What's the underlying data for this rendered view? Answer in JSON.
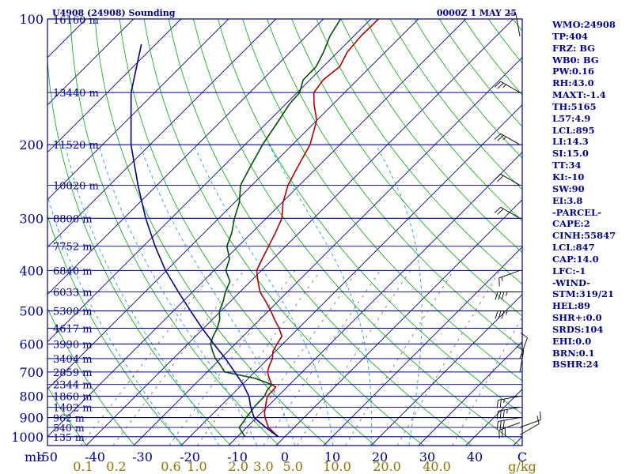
{
  "title_left": "U4908 (24908) Sounding",
  "title_right": "0000Z  1 MAY 25",
  "chart_data": {
    "type": "line",
    "title": "U4908 (24908) Sounding",
    "xlabel": "C",
    "x2label": "g/kg",
    "y_unit_label": "mb",
    "xlim": [
      -50,
      50
    ],
    "ylim": [
      1050,
      100
    ],
    "pressure_ticks": [
      100,
      200,
      300,
      400,
      500,
      600,
      700,
      800,
      900,
      1000
    ],
    "temp_ticks": [
      -50,
      -40,
      -30,
      -20,
      -10,
      0,
      10,
      20,
      30,
      40
    ],
    "mixing_ratio_ticks": [
      {
        "label": "0.1",
        "x": -42.5
      },
      {
        "label": "0.2",
        "x": -35.5
      },
      {
        "label": "0.6",
        "x": -24
      },
      {
        "label": "1.0",
        "x": -18.5
      },
      {
        "label": "2.0",
        "x": -9.8
      },
      {
        "label": "3.0",
        "x": -4.5
      },
      {
        "label": "5.0",
        "x": 1.7
      },
      {
        "label": "10.0",
        "x": 11
      },
      {
        "label": "20.0",
        "x": 21.5
      },
      {
        "label": "40.0",
        "x": 32
      }
    ],
    "height_ticks": [
      {
        "p": 100,
        "label": "16160 m"
      },
      {
        "p": 150,
        "label": "13440 m"
      },
      {
        "p": 200,
        "label": "11520 m"
      },
      {
        "p": 250,
        "label": "10020 m"
      },
      {
        "p": 300,
        "label": "8800 m"
      },
      {
        "p": 350,
        "label": "7752 m"
      },
      {
        "p": 400,
        "label": "6840 m"
      },
      {
        "p": 450,
        "label": "6033 m"
      },
      {
        "p": 500,
        "label": "5300 m"
      },
      {
        "p": 550,
        "label": "4617 m"
      },
      {
        "p": 600,
        "label": "3990 m"
      },
      {
        "p": 650,
        "label": "3404 m"
      },
      {
        "p": 700,
        "label": "2859 m"
      },
      {
        "p": 750,
        "label": "2344 m"
      },
      {
        "p": 800,
        "label": "1860 m"
      },
      {
        "p": 850,
        "label": "1402 m"
      },
      {
        "p": 900,
        "label": "962 m"
      },
      {
        "p": 950,
        "label": "540 m"
      },
      {
        "p": 1000,
        "label": "135 m"
      }
    ],
    "series": [
      {
        "role": "temperature",
        "color": "#b00000",
        "points": [
          [
            1000,
            -1.4
          ],
          [
            975,
            -3.4
          ],
          [
            950,
            -5.4
          ],
          [
            925,
            -6.8
          ],
          [
            900,
            -8.2
          ],
          [
            875,
            -9.4
          ],
          [
            850,
            -10.3
          ],
          [
            825,
            -11.3
          ],
          [
            800,
            -12.2
          ],
          [
            775,
            -12.3
          ],
          [
            760,
            -12.4
          ],
          [
            750,
            -13.8
          ],
          [
            725,
            -15.6
          ],
          [
            700,
            -17.3
          ],
          [
            675,
            -18.3
          ],
          [
            650,
            -19.1
          ],
          [
            625,
            -20.5
          ],
          [
            600,
            -21.2
          ],
          [
            575,
            -21.8
          ],
          [
            550,
            -24.1
          ],
          [
            525,
            -26.8
          ],
          [
            500,
            -29.5
          ],
          [
            475,
            -32.5
          ],
          [
            450,
            -35.8
          ],
          [
            425,
            -38.4
          ],
          [
            400,
            -41
          ],
          [
            375,
            -42.3
          ],
          [
            350,
            -43.6
          ],
          [
            325,
            -45
          ],
          [
            300,
            -46.7
          ],
          [
            275,
            -49.8
          ],
          [
            250,
            -52.4
          ],
          [
            225,
            -54.3
          ],
          [
            200,
            -56.3
          ],
          [
            175,
            -60
          ],
          [
            160,
            -64
          ],
          [
            150,
            -66.5
          ],
          [
            140,
            -67.2
          ],
          [
            130,
            -66.5
          ],
          [
            120,
            -68
          ],
          [
            110,
            -68.5
          ],
          [
            100,
            -68.4
          ]
        ]
      },
      {
        "role": "dewpoint",
        "color": "#005000",
        "points": [
          [
            1000,
            -8.4
          ],
          [
            975,
            -10
          ],
          [
            950,
            -11.6
          ],
          [
            925,
            -11.8
          ],
          [
            900,
            -12.2
          ],
          [
            875,
            -12.4
          ],
          [
            850,
            -12.7
          ],
          [
            825,
            -12.8
          ],
          [
            800,
            -12.8
          ],
          [
            775,
            -13.5
          ],
          [
            750,
            -13.8
          ],
          [
            725,
            -18.6
          ],
          [
            700,
            -26.3
          ],
          [
            675,
            -28.6
          ],
          [
            650,
            -31.1
          ],
          [
            625,
            -33.2
          ],
          [
            600,
            -35.2
          ],
          [
            575,
            -36.3
          ],
          [
            550,
            -37.1
          ],
          [
            525,
            -38.4
          ],
          [
            500,
            -40.3
          ],
          [
            475,
            -41.5
          ],
          [
            450,
            -43.1
          ],
          [
            425,
            -44.3
          ],
          [
            400,
            -47.5
          ],
          [
            375,
            -49.2
          ],
          [
            350,
            -52.4
          ],
          [
            325,
            -54.2
          ],
          [
            300,
            -56.7
          ],
          [
            275,
            -59
          ],
          [
            250,
            -62.4
          ],
          [
            225,
            -64.3
          ],
          [
            200,
            -66.3
          ],
          [
            175,
            -68
          ],
          [
            160,
            -69.2
          ],
          [
            150,
            -69.5
          ],
          [
            140,
            -71.4
          ],
          [
            130,
            -71.5
          ],
          [
            120,
            -73
          ],
          [
            110,
            -75
          ],
          [
            100,
            -76.4
          ]
        ]
      },
      {
        "role": "parcel",
        "color": "#00008b",
        "points": [
          [
            1000,
            -1.4
          ],
          [
            950,
            -6
          ],
          [
            900,
            -10.5
          ],
          [
            850,
            -13.4
          ],
          [
            800,
            -16.1
          ],
          [
            750,
            -19.8
          ],
          [
            700,
            -24.2
          ],
          [
            650,
            -29
          ],
          [
            600,
            -34.5
          ],
          [
            550,
            -40.3
          ],
          [
            500,
            -46.4
          ],
          [
            450,
            -53
          ],
          [
            400,
            -60.2
          ],
          [
            350,
            -67.5
          ],
          [
            300,
            -75.4
          ],
          [
            250,
            -84
          ],
          [
            200,
            -94
          ],
          [
            150,
            -105
          ],
          [
            115,
            -113
          ]
        ]
      }
    ],
    "wind_barbs": [
      {
        "p": 990,
        "dir": 60,
        "kt": 10
      },
      {
        "p": 950,
        "dir": 70,
        "kt": 10
      },
      {
        "p": 925,
        "dir": 250,
        "kt": 30
      },
      {
        "p": 900,
        "dir": 260,
        "kt": 30
      },
      {
        "p": 850,
        "dir": 260,
        "kt": 35
      },
      {
        "p": 800,
        "dir": 260,
        "kt": 25
      },
      {
        "p": 700,
        "dir": 10,
        "kt": 10
      },
      {
        "p": 650,
        "dir": 20,
        "kt": 10
      },
      {
        "p": 500,
        "dir": 270,
        "kt": 35
      },
      {
        "p": 450,
        "dir": 270,
        "kt": 35
      },
      {
        "p": 400,
        "dir": 250,
        "kt": 15
      },
      {
        "p": 300,
        "dir": 300,
        "kt": 20
      },
      {
        "p": 250,
        "dir": 300,
        "kt": 20
      },
      {
        "p": 200,
        "dir": 300,
        "kt": 25
      },
      {
        "p": 150,
        "dir": 300,
        "kt": 25
      },
      {
        "p": 110,
        "dir": 350,
        "kt": 10
      }
    ]
  },
  "indices": [
    "WMO:24908",
    "TP:404",
    "FRZ: BG",
    "WB0: BG",
    "PW:0.16",
    "RH:43.0",
    "MAXT:-1.4",
    "TH:5165",
    "L57:4.9",
    "LCL:895",
    "LI:14.3",
    "SI:15.0",
    "TT:34",
    "KI:-10",
    "SW:90",
    "EI:3.8",
    "-PARCEL-",
    "CAPE:2",
    "CINH:55847",
    "LCL:847",
    "CAP:14.0",
    "LFC:-1",
    "-WIND-",
    "STM:319/21",
    "HEL:89",
    "SHR+:0.0",
    "SRDS:104",
    "EHI:0.0",
    "BRN:0.1",
    "BSHR:24"
  ],
  "colors": {
    "isobar": "#00008b",
    "isotherm": "#00008b",
    "dry_adiabat": "#00aa00",
    "moist_adiabat": "#0099cc",
    "mixing_ratio": "#555533",
    "temperature": "#b00000",
    "dewpoint": "#005000",
    "parcel": "#00008b",
    "frame": "#00008b",
    "text": "#00008b",
    "mr_labels": "#8b7500",
    "wind": "#000000"
  }
}
